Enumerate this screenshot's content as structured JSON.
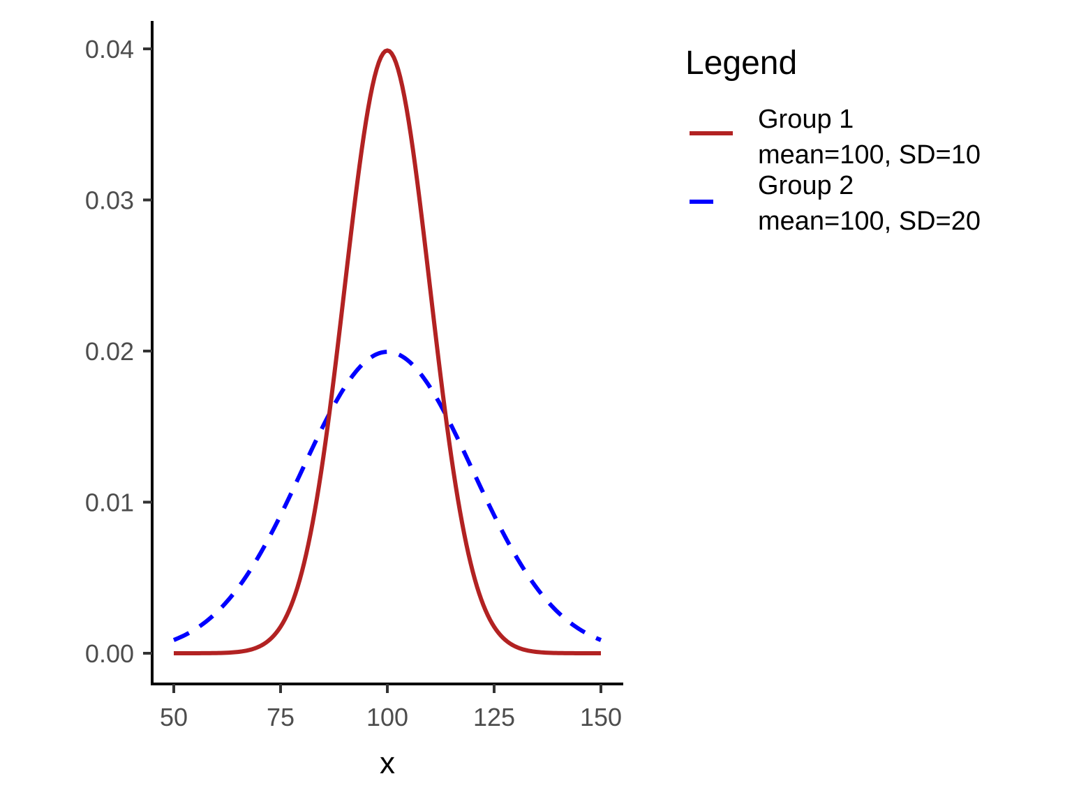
{
  "chart_data": {
    "type": "line",
    "title": "",
    "xlabel": "x",
    "ylabel": "",
    "xlim": [
      50,
      150
    ],
    "ylim": [
      0,
      0.04
    ],
    "x_ticks": [
      "50",
      "75",
      "100",
      "125",
      "150"
    ],
    "y_ticks": [
      "0.00",
      "0.01",
      "0.02",
      "0.03",
      "0.04"
    ],
    "grid": false,
    "legend": {
      "title": "Legend",
      "placement": "right"
    },
    "series": [
      {
        "label_line1": "Group 1",
        "label_line2": "mean=100, SD=10",
        "mean": 100,
        "sd": 10,
        "color": "#B22222",
        "line_style": "solid"
      },
      {
        "label_line1": "Group 2",
        "label_line2": "mean=100, SD=20",
        "mean": 100,
        "sd": 20,
        "color": "#0000FF",
        "line_style": "dashed"
      }
    ]
  }
}
